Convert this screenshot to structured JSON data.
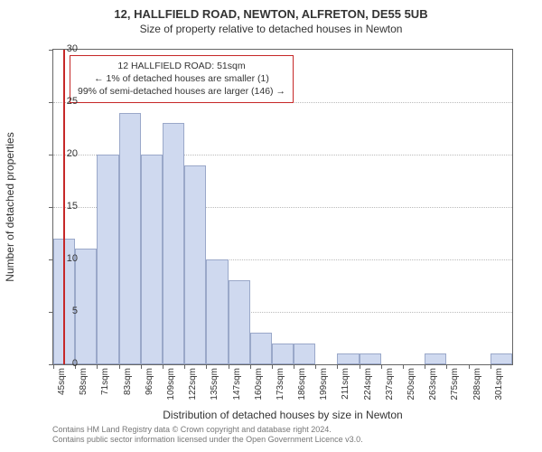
{
  "titles": {
    "line1": "12, HALLFIELD ROAD, NEWTON, ALFRETON, DE55 5UB",
    "line2": "Size of property relative to detached houses in Newton"
  },
  "chart": {
    "type": "histogram",
    "x_start": 45,
    "x_step": 13,
    "x_count": 21,
    "x_suffix": "sqm",
    "ylabel": "Number of detached properties",
    "xlabel": "Distribution of detached houses by size in Newton",
    "ylim": [
      0,
      30
    ],
    "ytick_step": 5,
    "grid_color": "#bbbbbb",
    "border_color": "#666666",
    "bar_fill": "#cfd9ef",
    "bar_border": "#9aa8c9",
    "background": "#ffffff",
    "categories": [
      "45sqm",
      "58sqm",
      "71sqm",
      "83sqm",
      "96sqm",
      "109sqm",
      "122sqm",
      "135sqm",
      "147sqm",
      "160sqm",
      "173sqm",
      "186sqm",
      "199sqm",
      "211sqm",
      "224sqm",
      "237sqm",
      "250sqm",
      "263sqm",
      "275sqm",
      "288sqm",
      "301sqm"
    ],
    "values": [
      12,
      11,
      20,
      24,
      20,
      23,
      19,
      10,
      8,
      3,
      2,
      2,
      0,
      1,
      1,
      0,
      0,
      1,
      0,
      0,
      1
    ],
    "refline_value": 51,
    "refline_color": "#c62828"
  },
  "annotation": {
    "line1": "12 HALLFIELD ROAD: 51sqm",
    "line2": "← 1% of detached houses are smaller (1)",
    "line3": "99% of semi-detached houses are larger (146) →",
    "border_color": "#c62828"
  },
  "credits": {
    "line1": "Contains HM Land Registry data © Crown copyright and database right 2024.",
    "line2": "Contains public sector information licensed under the Open Government Licence v3.0."
  }
}
